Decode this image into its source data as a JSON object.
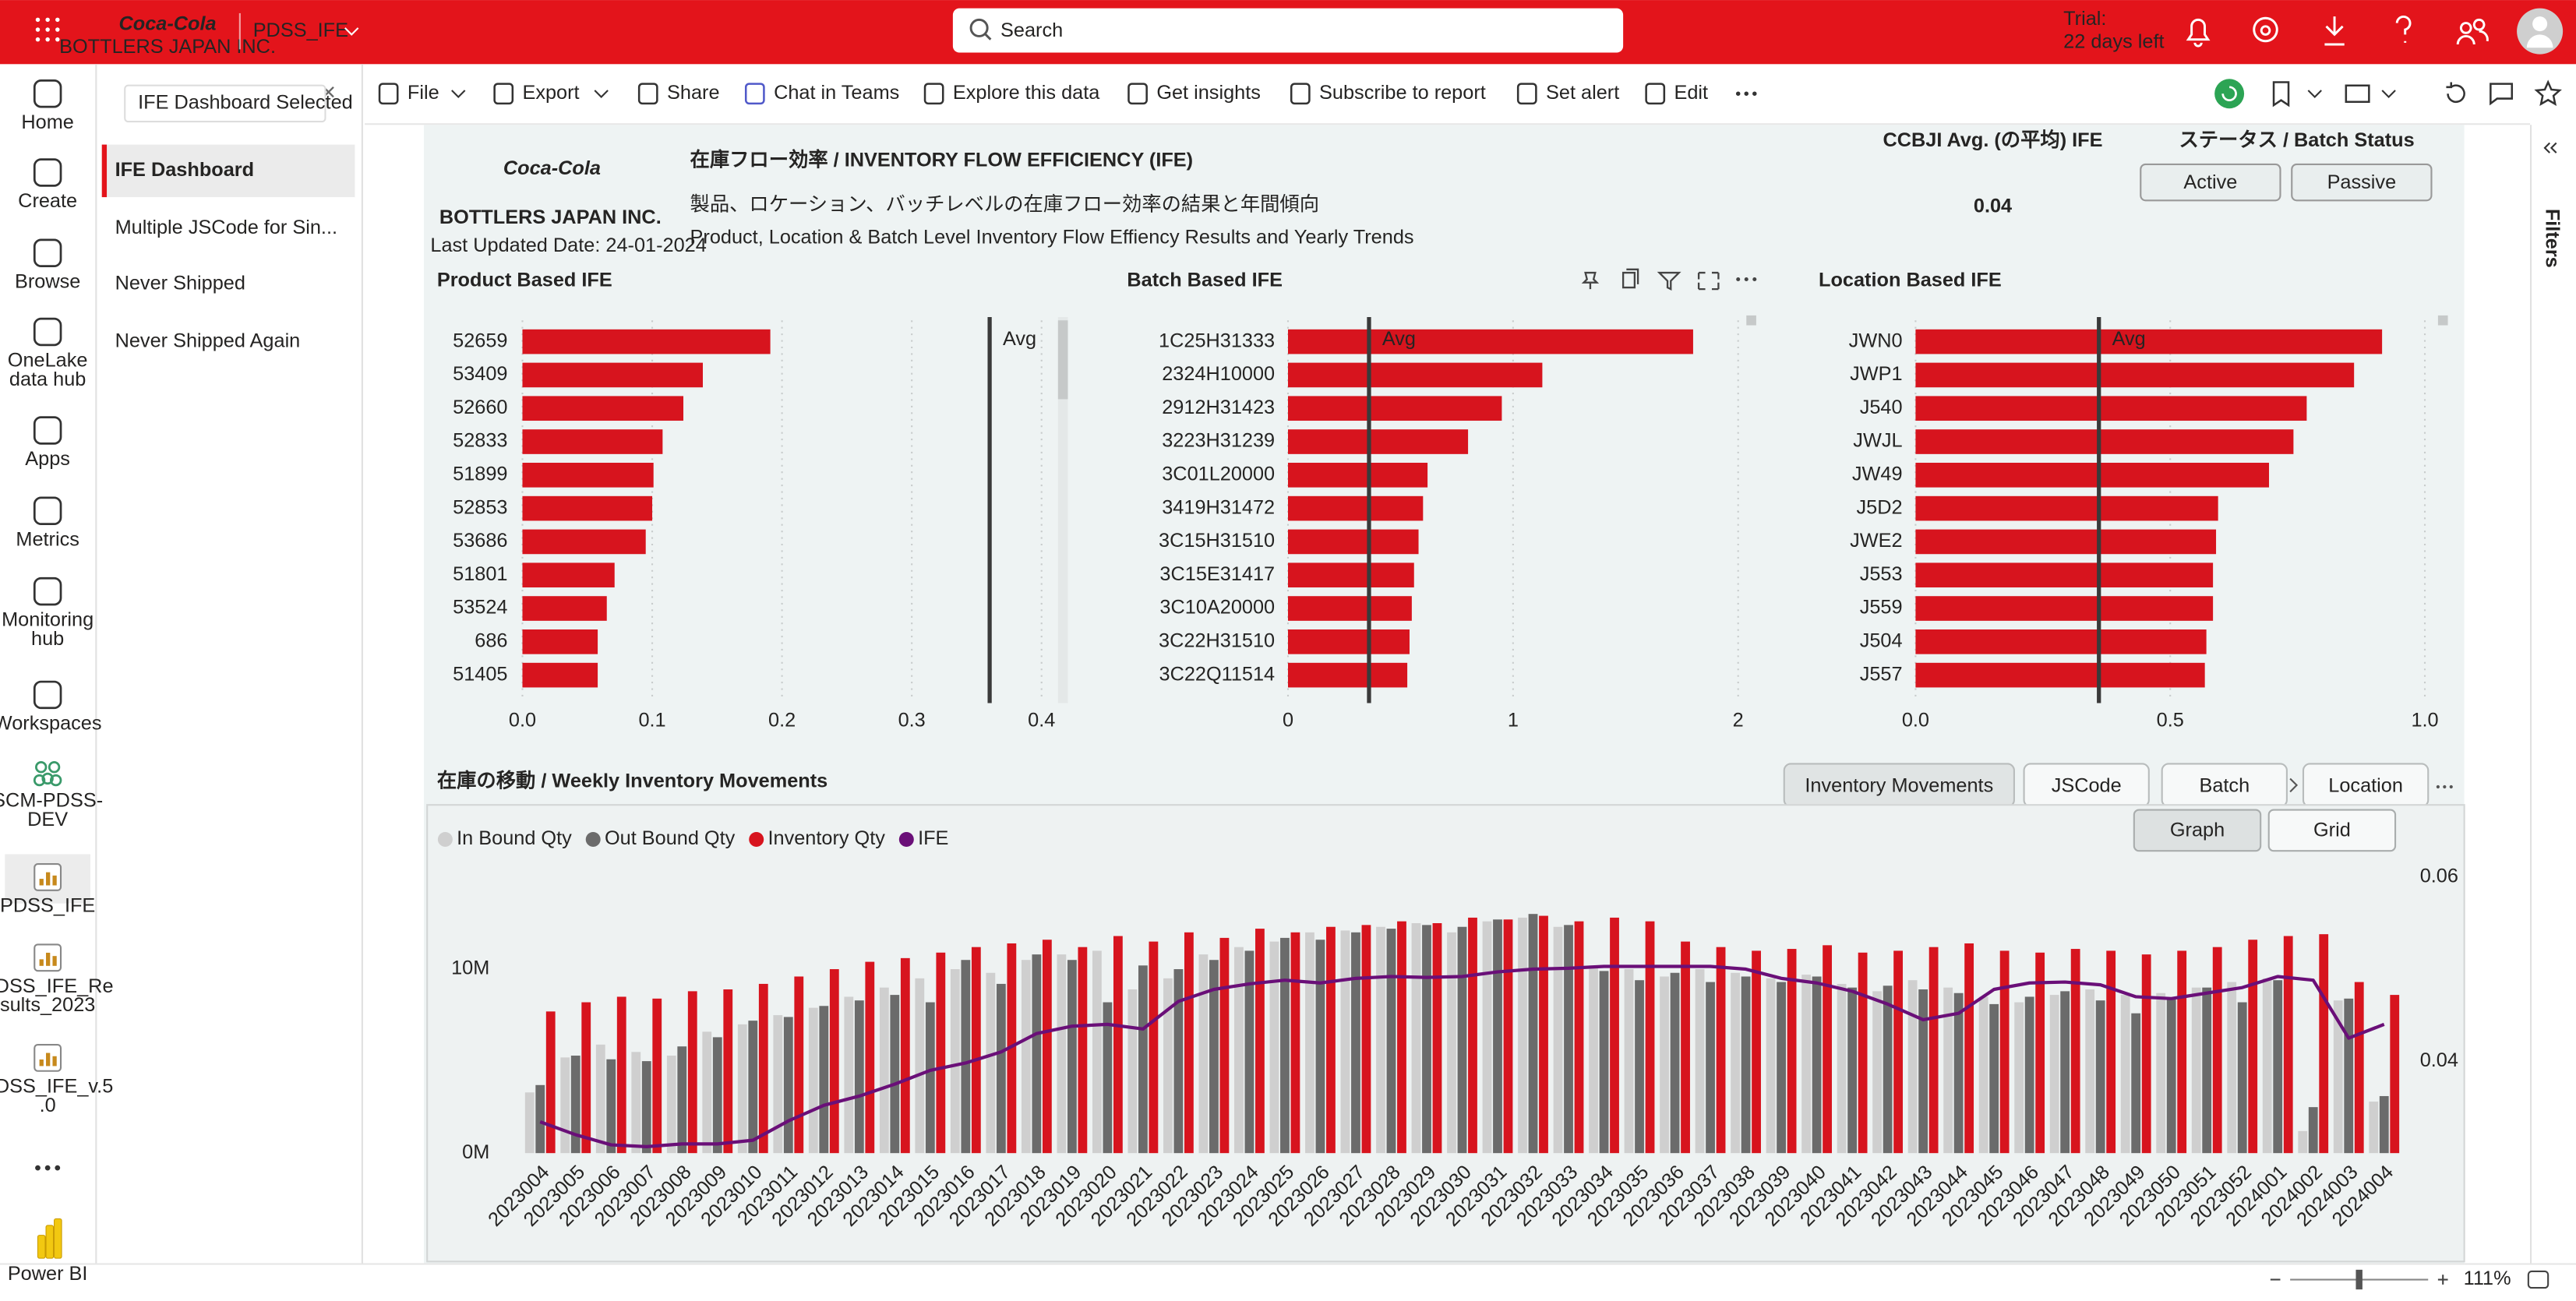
{
  "top_bar": {
    "brand": "Coca-Cola",
    "brand_sub": "BOTTLERS JAPAN INC.",
    "app_name": "PDSS_IFE",
    "search_placeholder": "Search",
    "trial": "Trial:",
    "trial_days": "22 days left"
  },
  "nav": [
    [
      "Home"
    ],
    [
      "Create"
    ],
    [
      "Browse"
    ],
    [
      "OneLake",
      "data hub"
    ],
    [
      "Apps"
    ],
    [
      "Metrics"
    ],
    [
      "Monitoring",
      "hub"
    ],
    [
      "Workspaces"
    ],
    [
      "SCM-PDSS-",
      "DEV"
    ],
    [
      "PDSS_IFE"
    ],
    [
      "PDSS_IFE_Re",
      "sults_2023"
    ],
    [
      "PDSS_IFE_v.5",
      ".0"
    ]
  ],
  "power_bi": "Power BI",
  "pages": {
    "tooltip": "IFE Dashboard Selected",
    "items": [
      "IFE Dashboard",
      "Multiple JSCode for Sin...",
      "Never Shipped",
      "Never Shipped Again"
    ]
  },
  "toolbar": [
    "File",
    "Export",
    "Share",
    "Chat in Teams",
    "Explore this data",
    "Get insights",
    "Subscribe to report",
    "Set alert",
    "Edit"
  ],
  "side_panel": "Filters",
  "zoom": "111%",
  "report": {
    "logo": "Coca-Cola",
    "logo_sub": "BOTTLERS JAPAN INC.",
    "last_updated": "Last Updated Date: 24-01-2024",
    "title": "在庫フロー効率 / INVENTORY FLOW EFFICIENCY (IFE)",
    "subtitle_ja": "製品、ロケーション、バッチレベルの在庫フロー効率の結果と年間傾向",
    "subtitle_en": "Product, Location & Batch Level Inventory Flow Effiency Results and Yearly Trends",
    "kpi": {
      "label": "CCBJI Avg. (の平均) IFE",
      "value": 0.04
    },
    "status": {
      "label": "ステータス / Batch Status",
      "buttons": [
        "Active",
        "Passive"
      ]
    },
    "charts": [
      {
        "type": "bar",
        "orientation": "horizontal",
        "title": "Product Based IFE",
        "categories": [
          "52659",
          "53409",
          "52660",
          "52833",
          "51899",
          "52853",
          "53686",
          "51801",
          "53524",
          "686",
          "51405"
        ],
        "values": [
          0.191,
          0.139,
          0.124,
          0.108,
          0.101,
          0.1,
          0.095,
          0.071,
          0.065,
          0.058,
          0.058
        ],
        "color": "#d7141e",
        "xlim": [
          0,
          0.4
        ],
        "xticks": [
          {
            "value": 0,
            "label": "0.0"
          },
          0.1,
          0.2,
          0.3,
          0.4
        ],
        "avg_value": 0.36,
        "avg_label": "Avg"
      },
      {
        "type": "bar",
        "orientation": "horizontal",
        "title": "Batch Based IFE",
        "categories": [
          "1C25H31333",
          "2324H10000",
          "2912H31423",
          "3223H31239",
          "3C01L20000",
          "3419H31472",
          "3C15H31510",
          "3C15E31417",
          "3C10A20000",
          "3C22H31510",
          "3C22Q11514"
        ],
        "values": [
          1.8,
          1.13,
          0.95,
          0.8,
          0.62,
          0.6,
          0.58,
          0.56,
          0.55,
          0.54,
          0.53
        ],
        "color": "#d7141e",
        "xlim": [
          0,
          2
        ],
        "xticks": [
          0,
          1,
          2
        ],
        "avg_value": 0.36,
        "avg_label": "Avg"
      },
      {
        "type": "bar",
        "orientation": "horizontal",
        "title": "Location Based IFE",
        "categories": [
          "JWN0",
          "JWP1",
          "J540",
          "JWJL",
          "JW49",
          "J5D2",
          "JWE2",
          "J553",
          "J559",
          "J504",
          "J557"
        ],
        "values": [
          0.916,
          0.861,
          0.768,
          0.742,
          0.694,
          0.594,
          0.59,
          0.584,
          0.584,
          0.571,
          0.568
        ],
        "color": "#d7141e",
        "xlim": [
          0,
          1
        ],
        "xticks": [
          {
            "value": 0,
            "label": "0.0"
          },
          0.5,
          {
            "value": 1,
            "label": "1.0"
          }
        ],
        "avg_value": 0.36,
        "avg_label": "Avg"
      }
    ],
    "movements": {
      "type": "bar-line",
      "title": "在庫の移動 / Weekly Inventory Movements",
      "tabs": [
        "Inventory Movements",
        "JSCode",
        "Batch",
        "Location"
      ],
      "view_buttons": [
        "Graph",
        "Grid"
      ],
      "categories": [
        "2023004",
        "2023005",
        "2023006",
        "2023007",
        "2023008",
        "2023009",
        "2023010",
        "2023011",
        "2023012",
        "2023013",
        "2023014",
        "2023015",
        "2023016",
        "2023017",
        "2023018",
        "2023019",
        "2023020",
        "2023021",
        "2023022",
        "2023023",
        "2023024",
        "2023025",
        "2023026",
        "2023027",
        "2023028",
        "2023029",
        "2023030",
        "2023031",
        "2023032",
        "2023033",
        "2023034",
        "2023035",
        "2023036",
        "2023037",
        "2023038",
        "2023039",
        "2023040",
        "2023041",
        "2023042",
        "2023043",
        "2023044",
        "2023045",
        "2023046",
        "2023047",
        "2023048",
        "2023049",
        "2023050",
        "2023051",
        "2023052",
        "2024001",
        "2024002",
        "2024003",
        "2024004"
      ],
      "series": [
        {
          "name": "In Bound Qty",
          "color": "#cfcfcf",
          "values": [
            3.3,
            5.2,
            5.9,
            5.5,
            5.3,
            6.6,
            7.0,
            7.5,
            7.9,
            8.5,
            9.0,
            9.5,
            10.0,
            9.8,
            10.5,
            10.8,
            11.0,
            8.9,
            9.5,
            10.8,
            11.2,
            11.5,
            12.0,
            12.1,
            12.3,
            12.5,
            12.0,
            12.6,
            12.8,
            12.3,
            10.2,
            10.0,
            9.6,
            10.0,
            9.8,
            9.5,
            9.7,
            9.2,
            8.8,
            9.4,
            9.0,
            8.5,
            8.2,
            8.6,
            8.9,
            8.6,
            8.7,
            9.0,
            9.3,
            9.5,
            1.2,
            8.3,
            2.8
          ]
        },
        {
          "name": "Out Bound Qty",
          "color": "#6b6b6b",
          "values": [
            3.7,
            5.3,
            5.1,
            5.0,
            5.8,
            6.3,
            7.2,
            7.4,
            8.0,
            8.3,
            8.6,
            8.2,
            10.5,
            9.2,
            10.8,
            10.5,
            8.2,
            10.2,
            10.0,
            10.5,
            11.0,
            11.7,
            11.6,
            12.0,
            12.2,
            12.4,
            12.3,
            12.7,
            13.0,
            12.4,
            9.9,
            9.4,
            9.8,
            9.3,
            9.6,
            9.3,
            9.6,
            9.0,
            9.1,
            8.9,
            8.7,
            8.1,
            8.5,
            8.8,
            8.3,
            7.6,
            8.4,
            9.0,
            8.2,
            9.4,
            2.5,
            8.4,
            3.1
          ]
        },
        {
          "name": "Inventory Qty",
          "color": "#d7141e",
          "values": [
            7.7,
            8.2,
            8.5,
            8.4,
            8.8,
            8.9,
            9.2,
            9.6,
            10.0,
            10.4,
            10.6,
            10.9,
            11.2,
            11.4,
            11.6,
            11.2,
            11.8,
            11.5,
            12.0,
            11.7,
            12.2,
            12.0,
            12.3,
            12.4,
            12.6,
            12.5,
            12.8,
            12.7,
            12.9,
            12.6,
            12.8,
            12.6,
            11.5,
            11.2,
            11.0,
            11.1,
            11.3,
            10.9,
            11.0,
            11.2,
            11.4,
            11.0,
            10.9,
            11.1,
            11.0,
            10.8,
            11.0,
            11.2,
            11.6,
            11.8,
            11.9,
            9.3,
            8.6
          ]
        },
        {
          "name": "IFE",
          "color": "#6a0f78",
          "axis": "y2",
          "values": [
            0.0334,
            0.032,
            0.0309,
            0.0307,
            0.031,
            0.031,
            0.0314,
            0.0335,
            0.0352,
            0.0362,
            0.0375,
            0.039,
            0.0398,
            0.041,
            0.043,
            0.0438,
            0.044,
            0.0435,
            0.0465,
            0.0478,
            0.0484,
            0.0488,
            0.0485,
            0.049,
            0.0492,
            0.0491,
            0.0492,
            0.0497,
            0.05,
            0.0501,
            0.0503,
            0.0503,
            0.0503,
            0.0503,
            0.05,
            0.049,
            0.0485,
            0.0476,
            0.0462,
            0.0445,
            0.0452,
            0.0478,
            0.0485,
            0.0486,
            0.0483,
            0.047,
            0.0468,
            0.0474,
            0.048,
            0.0492,
            0.0488,
            0.0425,
            0.044
          ]
        }
      ],
      "ylim": [
        0,
        16
      ],
      "yticks": [
        {
          "value": 0,
          "label": "0M"
        },
        {
          "value": 10,
          "label": "10M"
        }
      ],
      "y2lim": [
        0.03,
        0.062
      ],
      "y2ticks": [
        0.04,
        0.06
      ]
    }
  }
}
